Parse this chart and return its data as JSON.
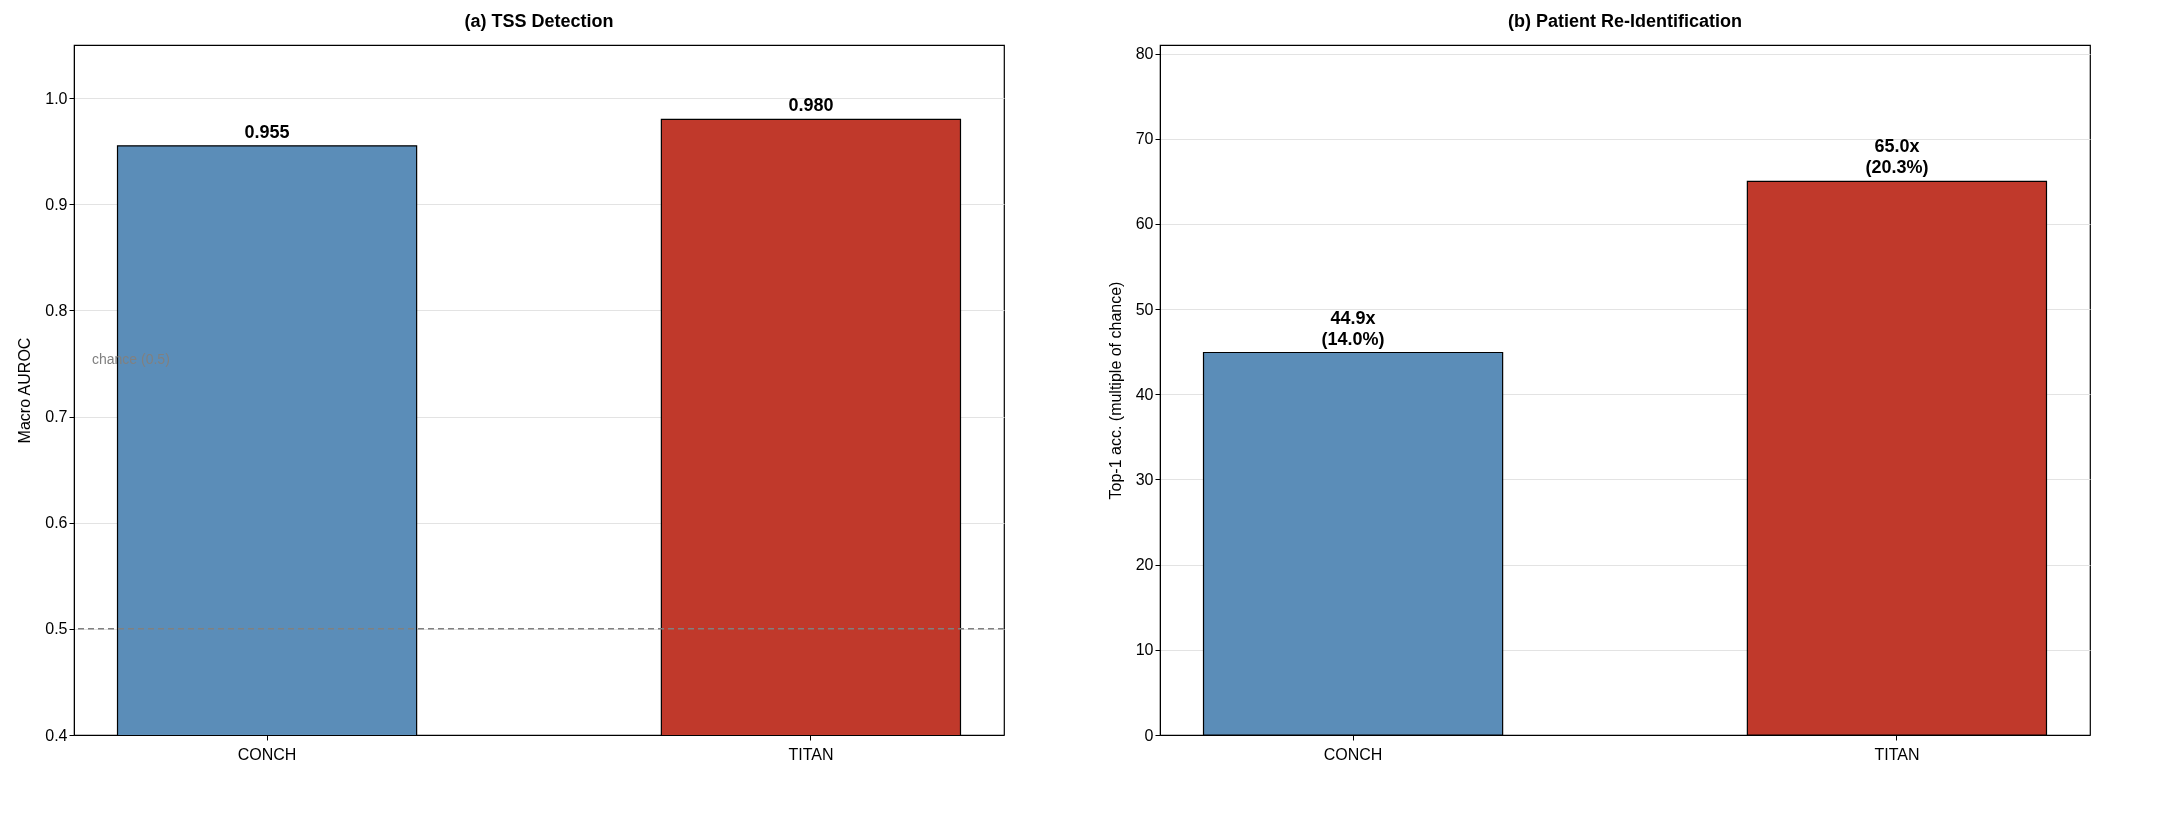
{
  "chart_data": [
    {
      "type": "bar",
      "title": "(a) TSS Detection",
      "ylabel": "Macro AUROC",
      "categories": [
        "CONCH",
        "TITAN"
      ],
      "values": [
        0.955,
        0.98
      ],
      "colors": [
        "#5b8db8",
        "#c0392b"
      ],
      "value_labels": [
        "0.955",
        "0.980"
      ],
      "ylim": [
        0.4,
        1.05
      ],
      "yticks": [
        {
          "value": 0.4,
          "label": "0.4"
        },
        {
          "value": 0.5,
          "label": "0.5"
        },
        {
          "value": 0.6,
          "label": "0.6"
        },
        {
          "value": 0.7,
          "label": "0.7"
        },
        {
          "value": 0.8,
          "label": "0.8"
        },
        {
          "value": 0.9,
          "label": "0.9"
        },
        {
          "value": 1.0,
          "label": "1.0"
        }
      ],
      "grid": "y",
      "ref_lines": [
        {
          "axis": "y",
          "value": 0.5,
          "label": "chance (0.5)",
          "color": "#808080",
          "line_style": "dashed"
        }
      ]
    },
    {
      "type": "bar",
      "title": "(b) Patient Re-Identification",
      "ylabel": "Top-1 acc. (multiple of chance)",
      "categories": [
        "CONCH",
        "TITAN"
      ],
      "values": [
        44.9,
        65.0
      ],
      "colors": [
        "#5b8db8",
        "#c0392b"
      ],
      "value_labels": [
        "44.9x\n(14.0%)",
        "65.0x\n(20.3%)"
      ],
      "ylim": [
        0,
        81
      ],
      "yticks": [
        0,
        10,
        20,
        30,
        40,
        50,
        60,
        70,
        80
      ],
      "grid": "y"
    }
  ]
}
